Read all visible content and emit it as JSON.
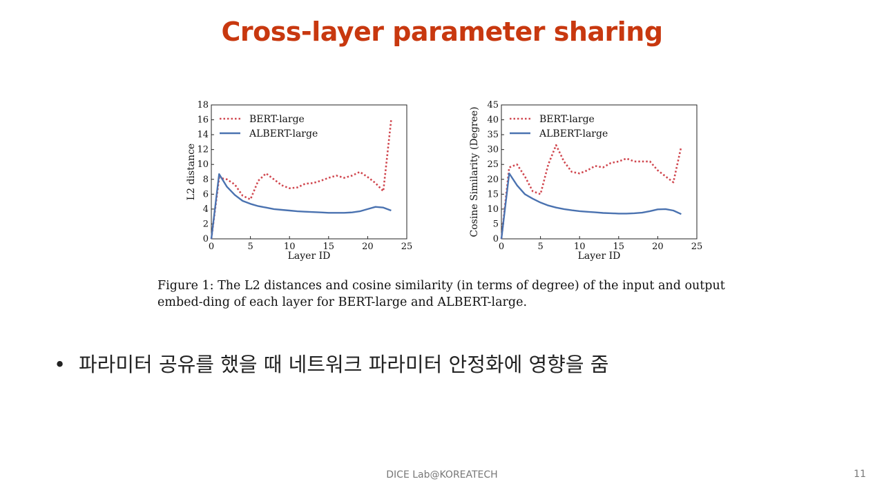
{
  "slide": {
    "title": "Cross-layer parameter sharing",
    "caption": "Figure 1: The L2 distances and cosine similarity (in terms of degree) of the input and output embed-ding of each layer for BERT-large and ALBERT-large.",
    "bullets": [
      "파라미터 공유를 했을 때 네트워크 파라미터 안정화에 영향을 줌"
    ],
    "footer": "DICE  Lab@KOREATECH",
    "page_number": "11"
  },
  "colors": {
    "title": "#c8380f",
    "bert": "#d0474f",
    "albert": "#4a72b0"
  },
  "chart_data": [
    {
      "type": "line",
      "xlabel": "Layer ID",
      "ylabel": "L2 distance",
      "xlim": [
        0,
        25
      ],
      "ylim": [
        0,
        18
      ],
      "xticks": [
        0,
        5,
        10,
        15,
        20,
        25
      ],
      "yticks": [
        0,
        2,
        4,
        6,
        8,
        10,
        12,
        14,
        16,
        18
      ],
      "legend": "top-left",
      "series": [
        {
          "name": "BERT-large",
          "style": "dotted",
          "x": [
            0,
            1,
            2,
            3,
            4,
            5,
            6,
            7,
            8,
            9,
            10,
            11,
            12,
            13,
            14,
            15,
            16,
            17,
            18,
            19,
            20,
            21,
            22,
            23
          ],
          "y": [
            0,
            8.2,
            8,
            7.3,
            5.8,
            5.3,
            7.8,
            8.8,
            8,
            7.2,
            6.8,
            6.9,
            7.4,
            7.5,
            7.8,
            8.2,
            8.5,
            8.2,
            8.5,
            9,
            8.3,
            7.5,
            6.4,
            16
          ]
        },
        {
          "name": "ALBERT-large",
          "style": "solid",
          "x": [
            0,
            1,
            2,
            3,
            4,
            5,
            6,
            7,
            8,
            9,
            10,
            11,
            12,
            13,
            14,
            15,
            16,
            17,
            18,
            19,
            20,
            21,
            22,
            23
          ],
          "y": [
            0,
            8.7,
            7,
            5.9,
            5.1,
            4.7,
            4.4,
            4.2,
            4,
            3.9,
            3.8,
            3.7,
            3.65,
            3.6,
            3.55,
            3.5,
            3.5,
            3.5,
            3.55,
            3.7,
            4,
            4.3,
            4.2,
            3.8
          ]
        }
      ]
    },
    {
      "type": "line",
      "xlabel": "Layer ID",
      "ylabel": "Cosine Similarity (Degree)",
      "xlim": [
        0,
        25
      ],
      "ylim": [
        0,
        45
      ],
      "xticks": [
        0,
        5,
        10,
        15,
        20,
        25
      ],
      "yticks": [
        0,
        5,
        10,
        15,
        20,
        25,
        30,
        35,
        40,
        45
      ],
      "legend": "top-left",
      "series": [
        {
          "name": "BERT-large",
          "style": "dotted",
          "x": [
            0,
            1,
            2,
            3,
            4,
            5,
            6,
            7,
            8,
            9,
            10,
            11,
            12,
            13,
            14,
            15,
            16,
            17,
            18,
            19,
            20,
            21,
            22,
            23
          ],
          "y": [
            0,
            24,
            25,
            21,
            16,
            15,
            25,
            31.5,
            26,
            22.5,
            22,
            23,
            24.5,
            24,
            25.5,
            26,
            27,
            26,
            26,
            26,
            23,
            21,
            19,
            31
          ]
        },
        {
          "name": "ALBERT-large",
          "style": "solid",
          "x": [
            0,
            1,
            2,
            3,
            4,
            5,
            6,
            7,
            8,
            9,
            10,
            11,
            12,
            13,
            14,
            15,
            16,
            17,
            18,
            19,
            20,
            21,
            22,
            23
          ],
          "y": [
            0,
            22,
            18,
            15,
            13.5,
            12.2,
            11.2,
            10.5,
            10,
            9.6,
            9.3,
            9.1,
            8.9,
            8.7,
            8.6,
            8.5,
            8.5,
            8.6,
            8.8,
            9.3,
            9.9,
            10,
            9.5,
            8.3
          ]
        }
      ]
    }
  ]
}
